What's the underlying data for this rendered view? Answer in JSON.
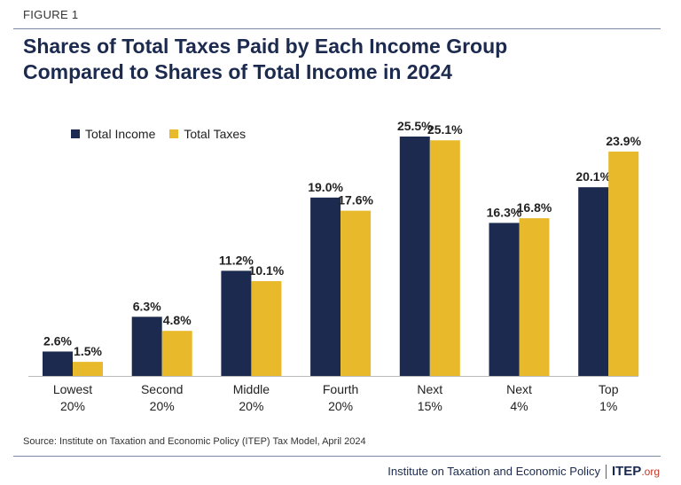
{
  "figure_label": "FIGURE 1",
  "footer": {
    "source": "Source: Institute on Taxation and Economic Policy (ITEP) Tax Model, April 2024",
    "org": "Institute on Taxation and Economic Policy",
    "logo_main": "ITEP",
    "logo_suffix": ".org"
  },
  "chart_data": {
    "type": "bar",
    "title": "Shares of Total Taxes Paid by Each Income Group Compared to Shares of Total Income in 2024",
    "categories": [
      [
        "Lowest",
        "20%"
      ],
      [
        "Second",
        "20%"
      ],
      [
        "Middle",
        "20%"
      ],
      [
        "Fourth",
        "20%"
      ],
      [
        "Next",
        "15%"
      ],
      [
        "Next",
        "4%"
      ],
      [
        "Top",
        "1%"
      ]
    ],
    "series": [
      {
        "name": "Total Income",
        "color": "#1b2a4e",
        "values": [
          2.6,
          6.3,
          11.2,
          19.0,
          25.5,
          16.3,
          20.1
        ]
      },
      {
        "name": "Total Taxes",
        "color": "#e8b92b",
        "values": [
          1.5,
          4.8,
          10.1,
          17.6,
          25.1,
          16.8,
          23.9
        ]
      }
    ],
    "value_format": "%",
    "ylim": [
      0,
      25.5
    ],
    "grid": false,
    "legend_position": "top-left"
  }
}
